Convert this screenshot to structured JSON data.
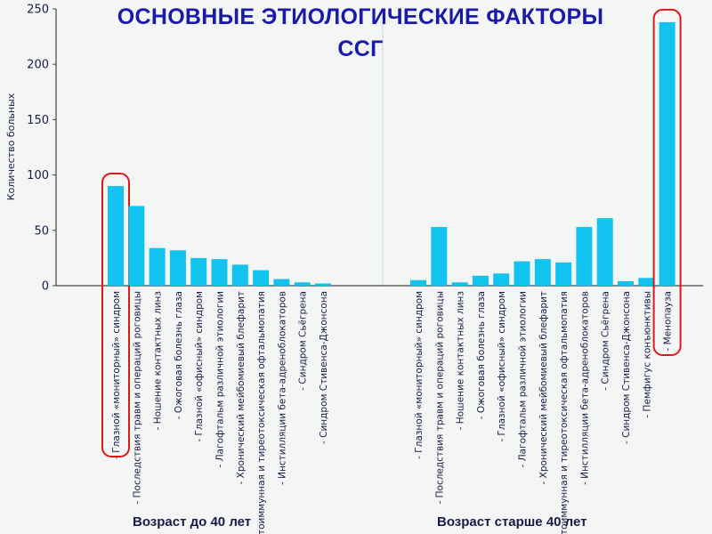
{
  "title": {
    "line1": "ОСНОВНЫЕ ЭТИОЛОГИЧЕСКИЕ ФАКТОРЫ",
    "line2": "ССГ"
  },
  "colors": {
    "bar": "#11c3ee",
    "highlight": "#e01818",
    "axis": "#444444",
    "grid": "#c8d4ec",
    "text": "#1a1a4a"
  },
  "chart_data": {
    "type": "bar",
    "title": "ОСНОВНЫЕ ЭТИОЛОГИЧЕСКИЕ ФАКТОРЫ ССГ",
    "ylabel": "Количество больных",
    "ylim": [
      0,
      250
    ],
    "yticks": [
      "0",
      "50",
      "100",
      "150",
      "200",
      "250"
    ],
    "grid": false,
    "groups": [
      {
        "label": "Возраст до 40 лет",
        "bars": [
          {
            "label": "- Глазной «мониторный» синдром",
            "value": 90,
            "highlighted": true
          },
          {
            "label": "- Последствия травм и операций роговицы",
            "value": 72
          },
          {
            "label": "- Ношение контактных линз",
            "value": 34
          },
          {
            "label": "- Ожоговая болезнь глаза",
            "value": 32
          },
          {
            "label": "- Глазной «офисный» синдром",
            "value": 25
          },
          {
            "label": "- Лагофтальм различной этиологии",
            "value": 24
          },
          {
            "label": "- Хронический мейбомиевый блефарит",
            "value": 19
          },
          {
            "label": "- Аутоиммунная и тиреотоксическая офтальмопатия",
            "value": 14
          },
          {
            "label": "- Инстилляции бета-адреноблокаторов",
            "value": 6
          },
          {
            "label": "- Синдром Сьёгрена",
            "value": 3
          },
          {
            "label": "- Синдром Стивенса-Джонсона",
            "value": 2
          }
        ]
      },
      {
        "label": "Возраст старше 40 лет",
        "bars": [
          {
            "label": "- Глазной «мониторный» синдром",
            "value": 5
          },
          {
            "label": "- Последствия травм и операций роговицы",
            "value": 53
          },
          {
            "label": "- Ношение контактных линз",
            "value": 3
          },
          {
            "label": "- Ожоговая болезнь глаза",
            "value": 9
          },
          {
            "label": "- Глазной «офисный» синдром",
            "value": 11
          },
          {
            "label": "- Лагофтальм различной этиологии",
            "value": 22
          },
          {
            "label": "- Хронический мейбомиевый блефарит",
            "value": 24
          },
          {
            "label": "- Аутоиммунная и тиреотоксическая офтальмопатия",
            "value": 21
          },
          {
            "label": "- Инстилляции бета-адреноблокаторов",
            "value": 53
          },
          {
            "label": "- Синдром Сьёгрена",
            "value": 61
          },
          {
            "label": "- Синдром Стивенса-Джонсона",
            "value": 4
          },
          {
            "label": "- Пемфигус конъюнктивы",
            "value": 7
          },
          {
            "label": "- Менопауза",
            "value": 238,
            "highlighted": true
          }
        ]
      }
    ]
  }
}
